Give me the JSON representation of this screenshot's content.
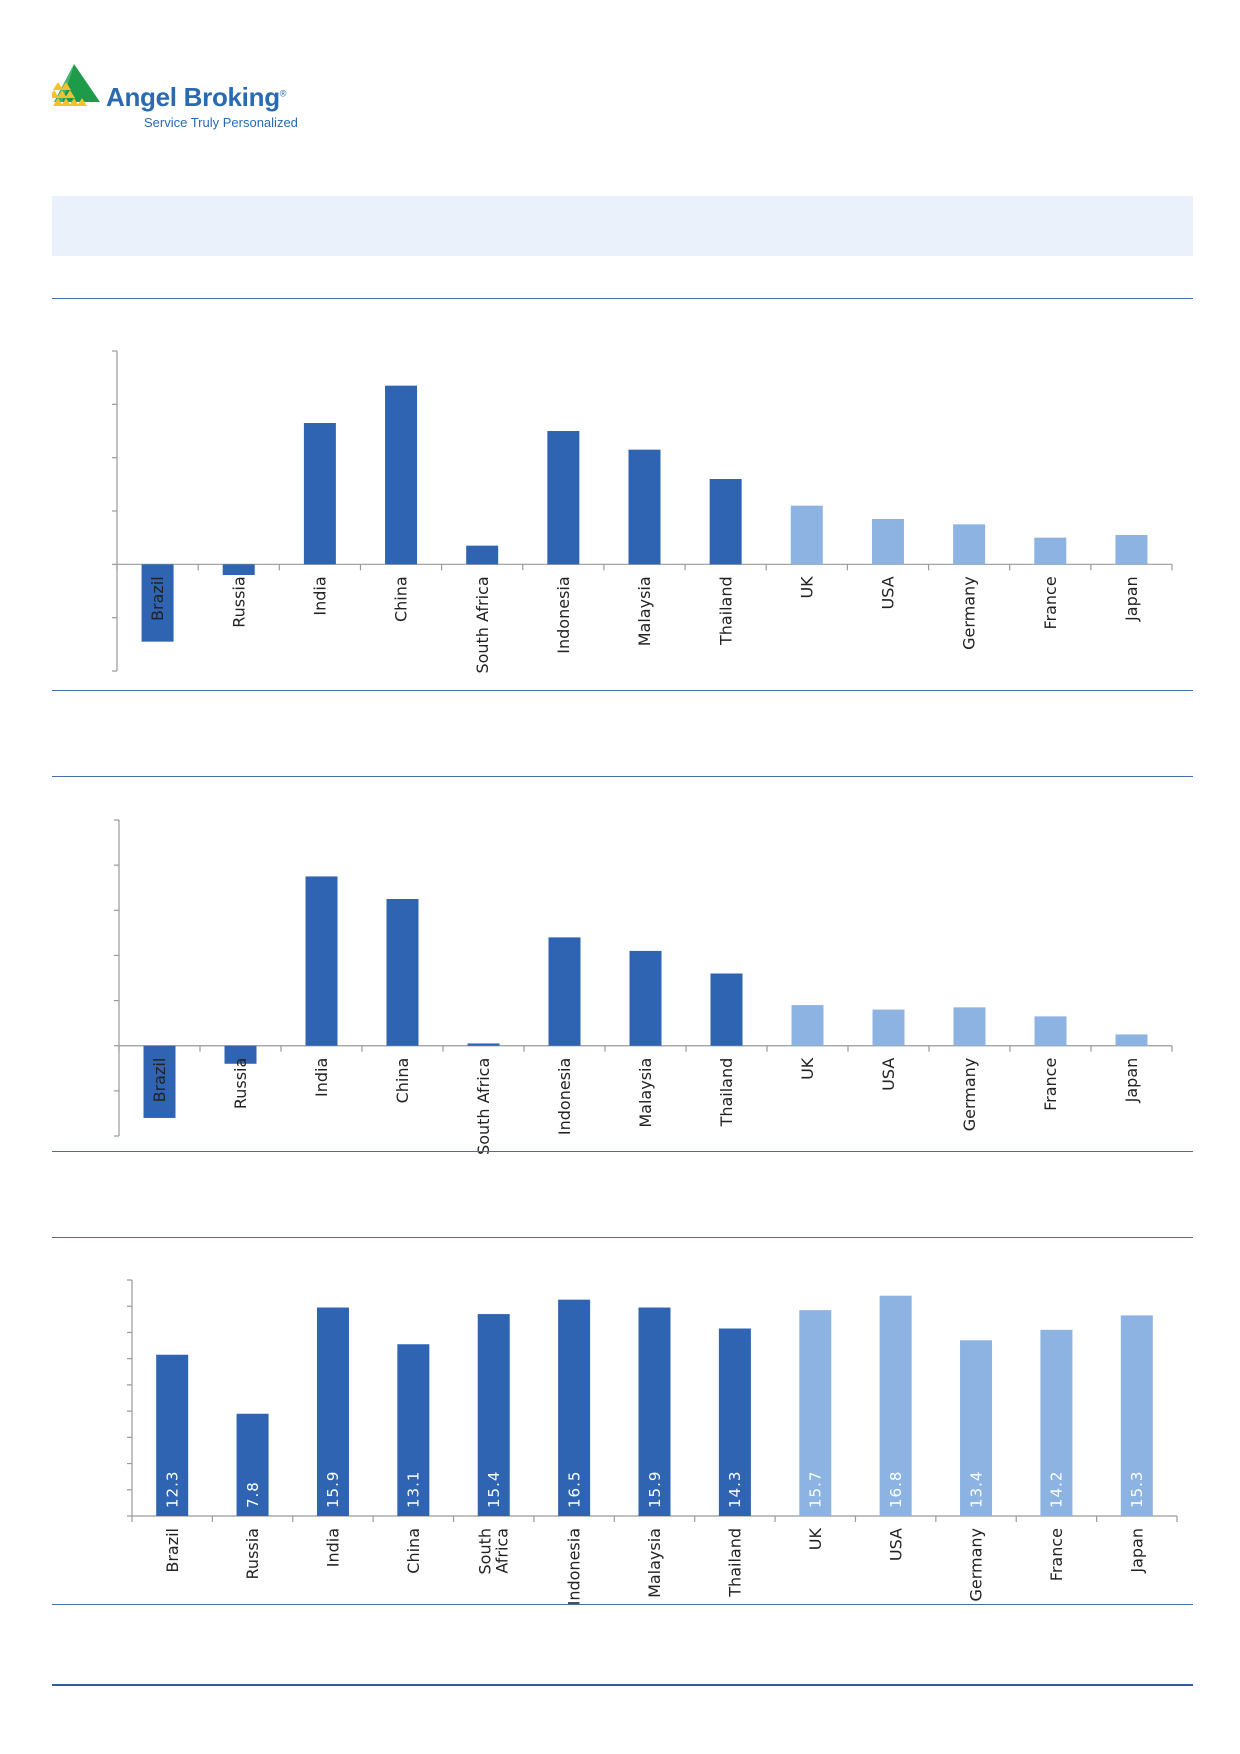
{
  "brand": {
    "name": "Angel Broking",
    "registered": "®",
    "tagline": "Service Truly Personalized",
    "logo_icon": "triangle-pyramid-logo-icon"
  },
  "colors": {
    "emerging": "#2e64b2",
    "developed": "#8db3e2",
    "band": "#eaf1fa",
    "rule": "#4a6fa5"
  },
  "chart_data": [
    {
      "type": "bar",
      "categories": [
        "Brazil",
        "Russia",
        "India",
        "China",
        "South Africa",
        "Indonesia",
        "Malaysia",
        "Thailand",
        "UK",
        "USA",
        "Germany",
        "France",
        "Japan"
      ],
      "values": [
        -2.9,
        -0.4,
        5.3,
        6.7,
        0.7,
        5.0,
        4.3,
        3.2,
        2.2,
        1.7,
        1.5,
        1.0,
        1.1
      ],
      "groups": [
        "emerging",
        "emerging",
        "emerging",
        "emerging",
        "emerging",
        "emerging",
        "emerging",
        "emerging",
        "developed",
        "developed",
        "developed",
        "developed",
        "developed"
      ],
      "ylim": [
        -4,
        8
      ],
      "ytick_step": 2,
      "data_labels": false
    },
    {
      "type": "bar",
      "categories": [
        "Brazil",
        "Russia",
        "India",
        "China",
        "South Africa",
        "Indonesia",
        "Malaysia",
        "Thailand",
        "UK",
        "USA",
        "Germany",
        "France",
        "Japan"
      ],
      "values": [
        -3.2,
        -0.8,
        7.5,
        6.5,
        0.1,
        4.8,
        4.2,
        3.2,
        1.8,
        1.6,
        1.7,
        1.3,
        0.5
      ],
      "groups": [
        "emerging",
        "emerging",
        "emerging",
        "emerging",
        "emerging",
        "emerging",
        "emerging",
        "emerging",
        "developed",
        "developed",
        "developed",
        "developed",
        "developed"
      ],
      "ylim": [
        -4,
        10
      ],
      "ytick_step": 2,
      "data_labels": false
    },
    {
      "type": "bar",
      "categories": [
        "Brazil",
        "Russia",
        "India",
        "China",
        "South Africa",
        "Indonesia",
        "Malaysia",
        "Thailand",
        "UK",
        "USA",
        "Germany",
        "France",
        "Japan"
      ],
      "category_lines": [
        [
          "Brazil"
        ],
        [
          "Russia"
        ],
        [
          "India"
        ],
        [
          "China"
        ],
        [
          "South",
          "Africa"
        ],
        [
          "Indonesia"
        ],
        [
          "Malaysia"
        ],
        [
          "Thailand"
        ],
        [
          "UK"
        ],
        [
          "USA"
        ],
        [
          "Germany"
        ],
        [
          "France"
        ],
        [
          "Japan"
        ]
      ],
      "values": [
        12.3,
        7.8,
        15.9,
        13.1,
        15.4,
        16.5,
        15.9,
        14.3,
        15.7,
        16.8,
        13.4,
        14.2,
        15.3
      ],
      "value_labels": [
        "12.3",
        "7.8",
        "15.9",
        "13.1",
        "15.4",
        "16.5",
        "15.9",
        "14.3",
        "15.7",
        "16.8",
        "13.4",
        "14.2",
        "15.3"
      ],
      "groups": [
        "emerging",
        "emerging",
        "emerging",
        "emerging",
        "emerging",
        "emerging",
        "emerging",
        "emerging",
        "developed",
        "developed",
        "developed",
        "developed",
        "developed"
      ],
      "ylim": [
        0,
        18
      ],
      "ytick_step": 2,
      "data_labels": true
    }
  ]
}
